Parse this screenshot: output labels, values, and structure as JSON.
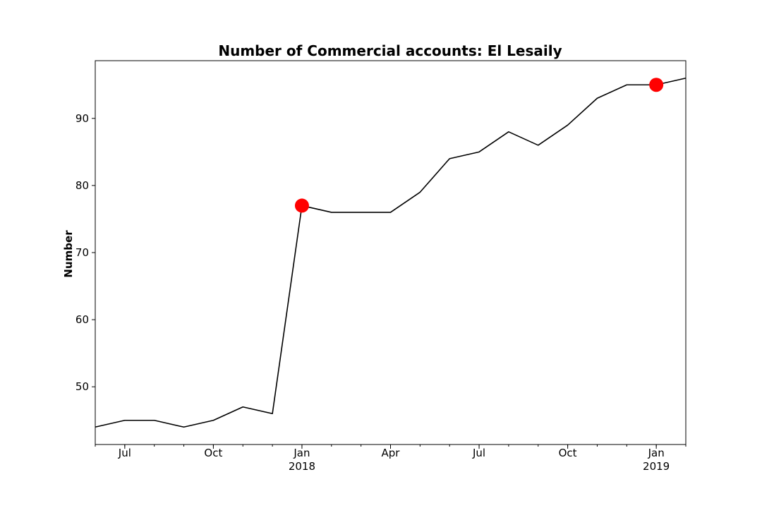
{
  "chart_data": {
    "type": "line",
    "title": "Number of Commercial accounts: El Lesaily",
    "xlabel": "",
    "ylabel": "Number",
    "x": [
      "2017-06",
      "2017-07",
      "2017-08",
      "2017-09",
      "2017-10",
      "2017-11",
      "2017-12",
      "2018-01",
      "2018-02",
      "2018-03",
      "2018-04",
      "2018-05",
      "2018-06",
      "2018-07",
      "2018-08",
      "2018-09",
      "2018-10",
      "2018-11",
      "2018-12",
      "2019-01",
      "2019-02"
    ],
    "series": [
      {
        "values": [
          44,
          45,
          45,
          44,
          45,
          47,
          46,
          77,
          76,
          76,
          76,
          79,
          84,
          85,
          88,
          86,
          89,
          93,
          95,
          95,
          96
        ],
        "color": "#000000"
      }
    ],
    "highlight_points": [
      {
        "x": "2018-01",
        "y": 77,
        "color": "#ff0000"
      },
      {
        "x": "2019-01",
        "y": 95,
        "color": "#ff0000"
      }
    ],
    "xlim": [
      "2017-06",
      "2019-02"
    ],
    "ylim": [
      41.4,
      98.6
    ],
    "y_ticks": [
      50,
      60,
      70,
      80,
      90
    ],
    "x_major_ticks": [
      {
        "x": "2017-07",
        "label": "Jul"
      },
      {
        "x": "2017-10",
        "label": "Oct"
      },
      {
        "x": "2018-01",
        "label": "Jan",
        "sublabel": "2018"
      },
      {
        "x": "2018-04",
        "label": "Apr"
      },
      {
        "x": "2018-07",
        "label": "Jul"
      },
      {
        "x": "2018-10",
        "label": "Oct"
      },
      {
        "x": "2019-01",
        "label": "Jan",
        "sublabel": "2019"
      }
    ],
    "grid": false,
    "legend": "none"
  }
}
